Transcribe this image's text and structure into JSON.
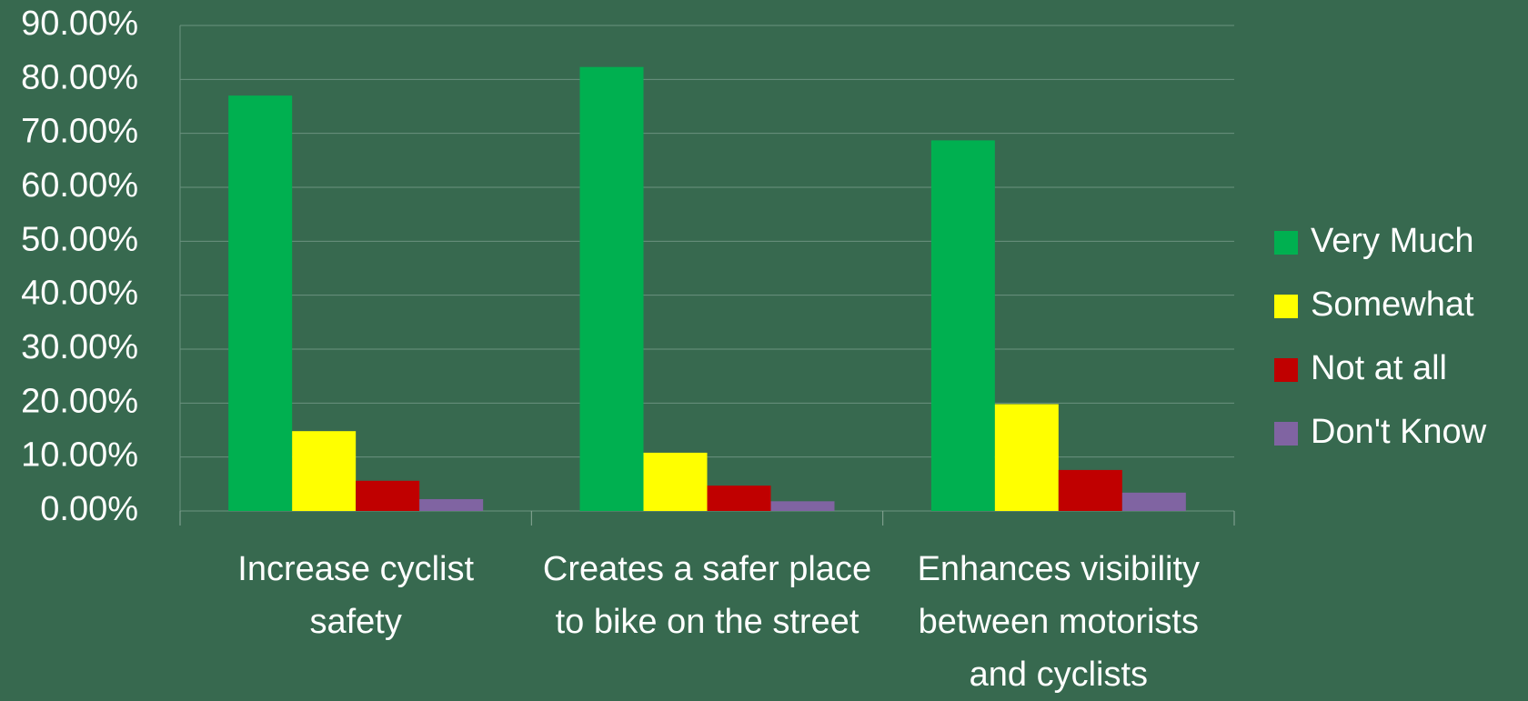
{
  "chart_data": {
    "type": "bar",
    "categories": [
      "Increase cyclist safety",
      "Creates a safer place to bike on the street",
      "Enhances visibility between motorists and cyclists"
    ],
    "series": [
      {
        "name": "Very Much",
        "color": "#00b050",
        "values": [
          77.0,
          82.3,
          68.7
        ]
      },
      {
        "name": "Somewhat",
        "color": "#ffff00",
        "values": [
          14.8,
          10.8,
          19.8
        ]
      },
      {
        "name": "Not at all",
        "color": "#c00000",
        "values": [
          5.6,
          4.7,
          7.6
        ]
      },
      {
        "name": "Don't Know",
        "color": "#8064a2",
        "values": [
          2.2,
          1.8,
          3.4
        ]
      }
    ],
    "ylim": [
      0,
      90
    ],
    "yticks": [
      {
        "value": 0,
        "label": "0.00%"
      },
      {
        "value": 10,
        "label": "10.00%"
      },
      {
        "value": 20,
        "label": "20.00%"
      },
      {
        "value": 30,
        "label": "30.00%"
      },
      {
        "value": 40,
        "label": "40.00%"
      },
      {
        "value": 50,
        "label": "50.00%"
      },
      {
        "value": 60,
        "label": "60.00%"
      },
      {
        "value": 70,
        "label": "70.00%"
      },
      {
        "value": 80,
        "label": "80.00%"
      },
      {
        "value": 90,
        "label": "90.00%"
      }
    ],
    "grid": true,
    "legend": "right"
  }
}
